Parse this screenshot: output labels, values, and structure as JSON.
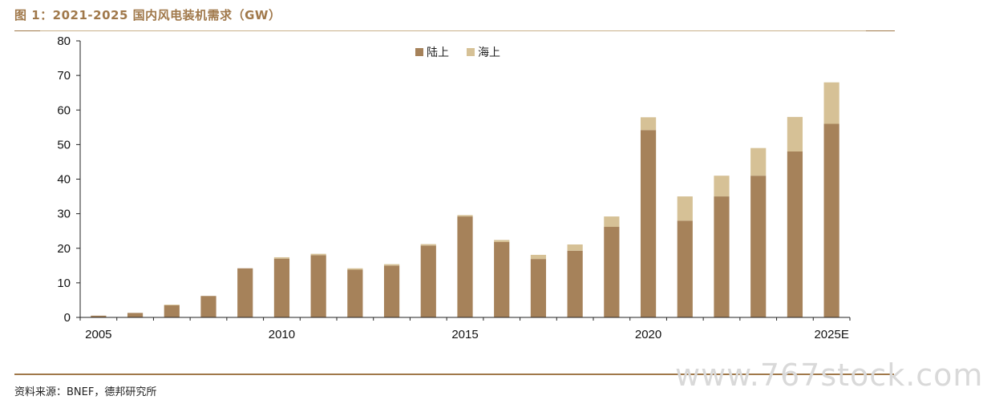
{
  "figure": {
    "title": "图 1：2021-2025 国内风电装机需求（GW）",
    "source": "资料来源：BNEF，德邦研究所",
    "watermark": "www.767stock.com"
  },
  "colors": {
    "accent": "#a0784a",
    "onshore": "#a6825a",
    "offshore": "#d6c196"
  },
  "chart_data": {
    "type": "bar",
    "stacked": true,
    "title": "",
    "xlabel": "",
    "ylabel": "",
    "categories": [
      "2005",
      "2006",
      "2007",
      "2008",
      "2009",
      "2010",
      "2011",
      "2012",
      "2013",
      "2014",
      "2015",
      "2016",
      "2017",
      "2018",
      "2019",
      "2020",
      "2021",
      "2022",
      "2023",
      "2024",
      "2025E"
    ],
    "x_tick_labels": [
      "2005",
      "",
      "",
      "",
      "",
      "2010",
      "",
      "",
      "",
      "",
      "2015",
      "",
      "",
      "",
      "",
      "2020",
      "",
      "",
      "",
      "",
      "2025E"
    ],
    "series": [
      {
        "name": "陆上",
        "color": "#a6825a",
        "values": [
          0.5,
          1.3,
          3.5,
          6.2,
          14.2,
          17.0,
          18.0,
          13.8,
          15.0,
          20.8,
          29.2,
          21.8,
          16.9,
          19.3,
          26.2,
          54.2,
          28.0,
          35.0,
          41.0,
          48.0,
          56.0
        ]
      },
      {
        "name": "海上",
        "color": "#d6c196",
        "values": [
          0,
          0,
          0.2,
          0,
          0,
          0.4,
          0.4,
          0.4,
          0.4,
          0.4,
          0.4,
          0.6,
          1.2,
          1.8,
          3.0,
          3.7,
          7.0,
          6.0,
          8.0,
          10.0,
          12.0
        ]
      }
    ],
    "ylim": [
      0,
      80
    ],
    "yticks": [
      "0",
      "10",
      "20",
      "30",
      "40",
      "50",
      "60",
      "70",
      "80"
    ],
    "grid": false,
    "legend_position": "top-center"
  }
}
